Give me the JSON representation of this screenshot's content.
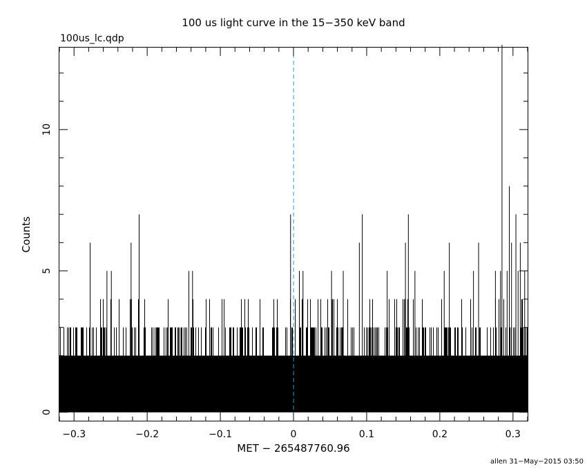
{
  "chart_data": {
    "type": "bar",
    "title": "100 us light curve in the 15−350 keV band",
    "subtitle": "100us_lc.qdp",
    "xlabel": "MET − 265487760.96",
    "ylabel": "Counts",
    "xlim": [
      -0.32,
      0.32
    ],
    "ylim": [
      -0.3,
      12.9
    ],
    "bin_width": 0.0001,
    "x_ticks": [
      {
        "value": -0.3,
        "label": "−0.3"
      },
      {
        "value": -0.2,
        "label": "−0.2"
      },
      {
        "value": -0.1,
        "label": "−0.1"
      },
      {
        "value": 0,
        "label": "0"
      },
      {
        "value": 0.1,
        "label": "0.1"
      },
      {
        "value": 0.2,
        "label": "0.2"
      },
      {
        "value": 0.3,
        "label": "0.3"
      }
    ],
    "y_ticks": [
      {
        "value": 0,
        "label": "0"
      },
      {
        "value": 5,
        "label": "5"
      },
      {
        "value": 10,
        "label": "10"
      }
    ],
    "baseline_counts": "0–2 counts per bin",
    "peaks": [
      {
        "x": -0.278,
        "y": 6
      },
      {
        "x": -0.255,
        "y": 5
      },
      {
        "x": -0.249,
        "y": 5
      },
      {
        "x": -0.222,
        "y": 6
      },
      {
        "x": -0.211,
        "y": 7
      },
      {
        "x": -0.143,
        "y": 5
      },
      {
        "x": -0.138,
        "y": 5
      },
      {
        "x": -0.004,
        "y": 7
      },
      {
        "x": 0.008,
        "y": 5
      },
      {
        "x": 0.013,
        "y": 5
      },
      {
        "x": 0.052,
        "y": 5
      },
      {
        "x": 0.068,
        "y": 5
      },
      {
        "x": 0.09,
        "y": 6
      },
      {
        "x": 0.094,
        "y": 7
      },
      {
        "x": 0.128,
        "y": 5
      },
      {
        "x": 0.153,
        "y": 6
      },
      {
        "x": 0.157,
        "y": 7
      },
      {
        "x": 0.166,
        "y": 5
      },
      {
        "x": 0.206,
        "y": 5
      },
      {
        "x": 0.213,
        "y": 6
      },
      {
        "x": 0.246,
        "y": 5
      },
      {
        "x": 0.253,
        "y": 6
      },
      {
        "x": 0.276,
        "y": 5
      },
      {
        "x": 0.283,
        "y": 5
      },
      {
        "x": 0.285,
        "y": 13
      },
      {
        "x": 0.292,
        "y": 5
      },
      {
        "x": 0.295,
        "y": 8
      },
      {
        "x": 0.298,
        "y": 6
      },
      {
        "x": 0.304,
        "y": 7
      },
      {
        "x": 0.307,
        "y": 5
      },
      {
        "x": 0.31,
        "y": 6
      },
      {
        "x": 0.316,
        "y": 5
      }
    ],
    "annotations": [
      {
        "type": "vertical-dashed-line",
        "x": 0,
        "color": "#1f9fd0"
      }
    ],
    "footer": "allen 31−May−2015 03:50",
    "colors": {
      "data": "#000000",
      "trigger_line": "#1f9fd0",
      "background": "#ffffff"
    }
  }
}
